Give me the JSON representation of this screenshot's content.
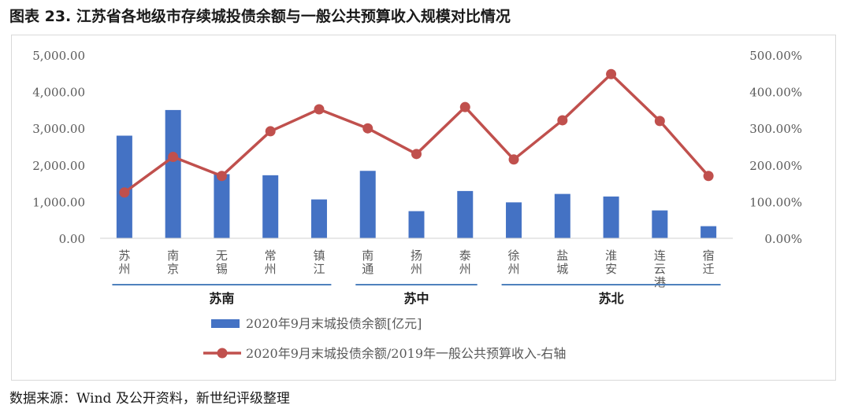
{
  "title": "图表 23.  江苏省各地级市存续城投债余额与一般公共预算收入规模对比情况",
  "source": "数据来源：Wind 及公开资料，新世纪评级整理",
  "chart_data": {
    "type": "bar+line",
    "categories": [
      "苏州",
      "南京",
      "无锡",
      "常州",
      "镇江",
      "南通",
      "扬州",
      "泰州",
      "徐州",
      "盐城",
      "淮安",
      "连云港",
      "宿迁"
    ],
    "series": [
      {
        "name": "2020年9月末城投债余额[亿元]",
        "type": "bar",
        "axis": "left",
        "values": [
          2800,
          3500,
          1750,
          1720,
          1060,
          1840,
          740,
          1290,
          980,
          1210,
          1140,
          760,
          330
        ]
      },
      {
        "name": "2020年9月末城投债余额/2019年一般公共预算收入-右轴",
        "type": "line",
        "axis": "right",
        "values": [
          125,
          222,
          170,
          292,
          352,
          300,
          230,
          358,
          215,
          322,
          448,
          320,
          170
        ]
      }
    ],
    "left_axis": {
      "ylim": [
        0,
        5000
      ],
      "ticks": [
        "0.00",
        "1,000.00",
        "2,000.00",
        "3,000.00",
        "4,000.00",
        "5,000.00"
      ]
    },
    "right_axis": {
      "ylim": [
        0,
        500
      ],
      "ticks": [
        "0.00%",
        "100.00%",
        "200.00%",
        "300.00%",
        "400.00%",
        "500.00%"
      ]
    },
    "groups": [
      {
        "label": "苏南",
        "from": 0,
        "to": 4
      },
      {
        "label": "苏中",
        "from": 5,
        "to": 7
      },
      {
        "label": "苏北",
        "from": 8,
        "to": 12
      }
    ],
    "colors": {
      "bar": "#4472c4",
      "line": "#c0504d",
      "group_line": "#4f81bd"
    },
    "grid": false,
    "legend_position": "bottom"
  }
}
